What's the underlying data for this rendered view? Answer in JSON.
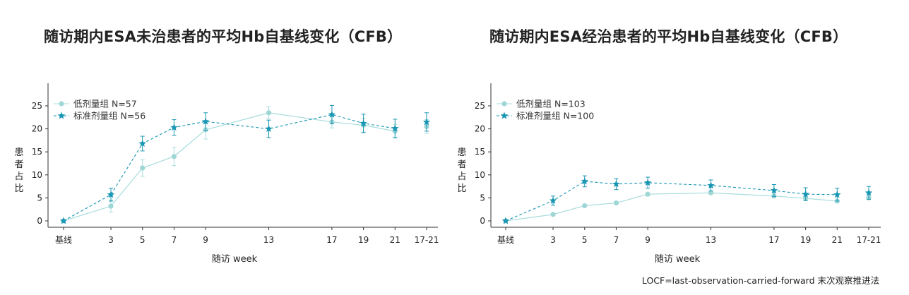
{
  "colors": {
    "low": "#a8dcdc",
    "low_point": "#9fd6d6",
    "standard": "#1996b4",
    "axis": "#333333"
  },
  "icons": {
    "low_marker": "circle-marker",
    "standard_marker": "star-marker"
  },
  "footnote": "LOCF=last-observation-carried-forward 末次观察推进法",
  "chart_data": [
    {
      "type": "line",
      "title": "随访期内ESA未治患者的平均Hb自基线变化（CFB）",
      "xlabel": "随访 week",
      "ylabel": "患者占比",
      "x_categories": [
        "基线",
        "3",
        "5",
        "7",
        "9",
        "13",
        "17",
        "19",
        "21",
        "17-21"
      ],
      "x_positions": [
        0,
        3,
        5,
        7,
        9,
        13,
        17,
        19,
        21,
        23
      ],
      "ylim": [
        0,
        28
      ],
      "yticks": [
        0,
        5,
        10,
        15,
        20,
        25
      ],
      "legend_position": "top-left",
      "series": [
        {
          "name": "低剂量组  N=57",
          "marker": "circle",
          "line": "solid",
          "values": [
            0,
            3.2,
            11.5,
            14,
            19.8,
            23.5,
            21.5,
            20.8,
            19.5,
            20.5
          ],
          "errors": [
            0,
            1.3,
            1.8,
            2.0,
            2.0,
            1.3,
            1.3,
            1.5,
            1.5,
            1.5
          ]
        },
        {
          "name": "标准剂量组  N=56",
          "marker": "star",
          "line": "dashed",
          "values": [
            0,
            5.7,
            16.8,
            20.3,
            21.6,
            20.0,
            23.1,
            21.2,
            20.1,
            21.5
          ],
          "errors": [
            0,
            1.4,
            1.6,
            1.7,
            1.9,
            1.9,
            2.0,
            2.0,
            2.0,
            2.0
          ]
        }
      ]
    },
    {
      "type": "line",
      "title": "随访期内ESA经治患者的平均Hb自基线变化（CFB）",
      "xlabel": "随访 week",
      "ylabel": "患者占比",
      "x_categories": [
        "基线",
        "3",
        "5",
        "7",
        "9",
        "13",
        "17",
        "19",
        "21",
        "17-21"
      ],
      "x_positions": [
        0,
        3,
        5,
        7,
        9,
        13,
        17,
        19,
        21,
        23
      ],
      "ylim": [
        0,
        28
      ],
      "yticks": [
        0,
        5,
        10,
        15,
        20,
        25
      ],
      "legend_position": "top-left",
      "series": [
        {
          "name": "低剂量组 N=103",
          "marker": "circle",
          "line": "solid",
          "values": [
            0,
            1.4,
            3.3,
            3.9,
            5.8,
            6.1,
            5.4,
            4.9,
            4.3,
            5.0
          ],
          "errors": [
            0,
            0,
            0,
            0,
            0,
            0,
            0,
            0,
            0,
            0
          ]
        },
        {
          "name": "标准剂量组 N=100",
          "marker": "star",
          "line": "dashed",
          "values": [
            0,
            4.4,
            8.6,
            8.0,
            8.3,
            7.7,
            6.6,
            5.8,
            5.7,
            6.1
          ],
          "errors": [
            0,
            1.0,
            1.2,
            1.2,
            1.2,
            1.2,
            1.3,
            1.4,
            1.4,
            1.4
          ]
        }
      ]
    }
  ]
}
